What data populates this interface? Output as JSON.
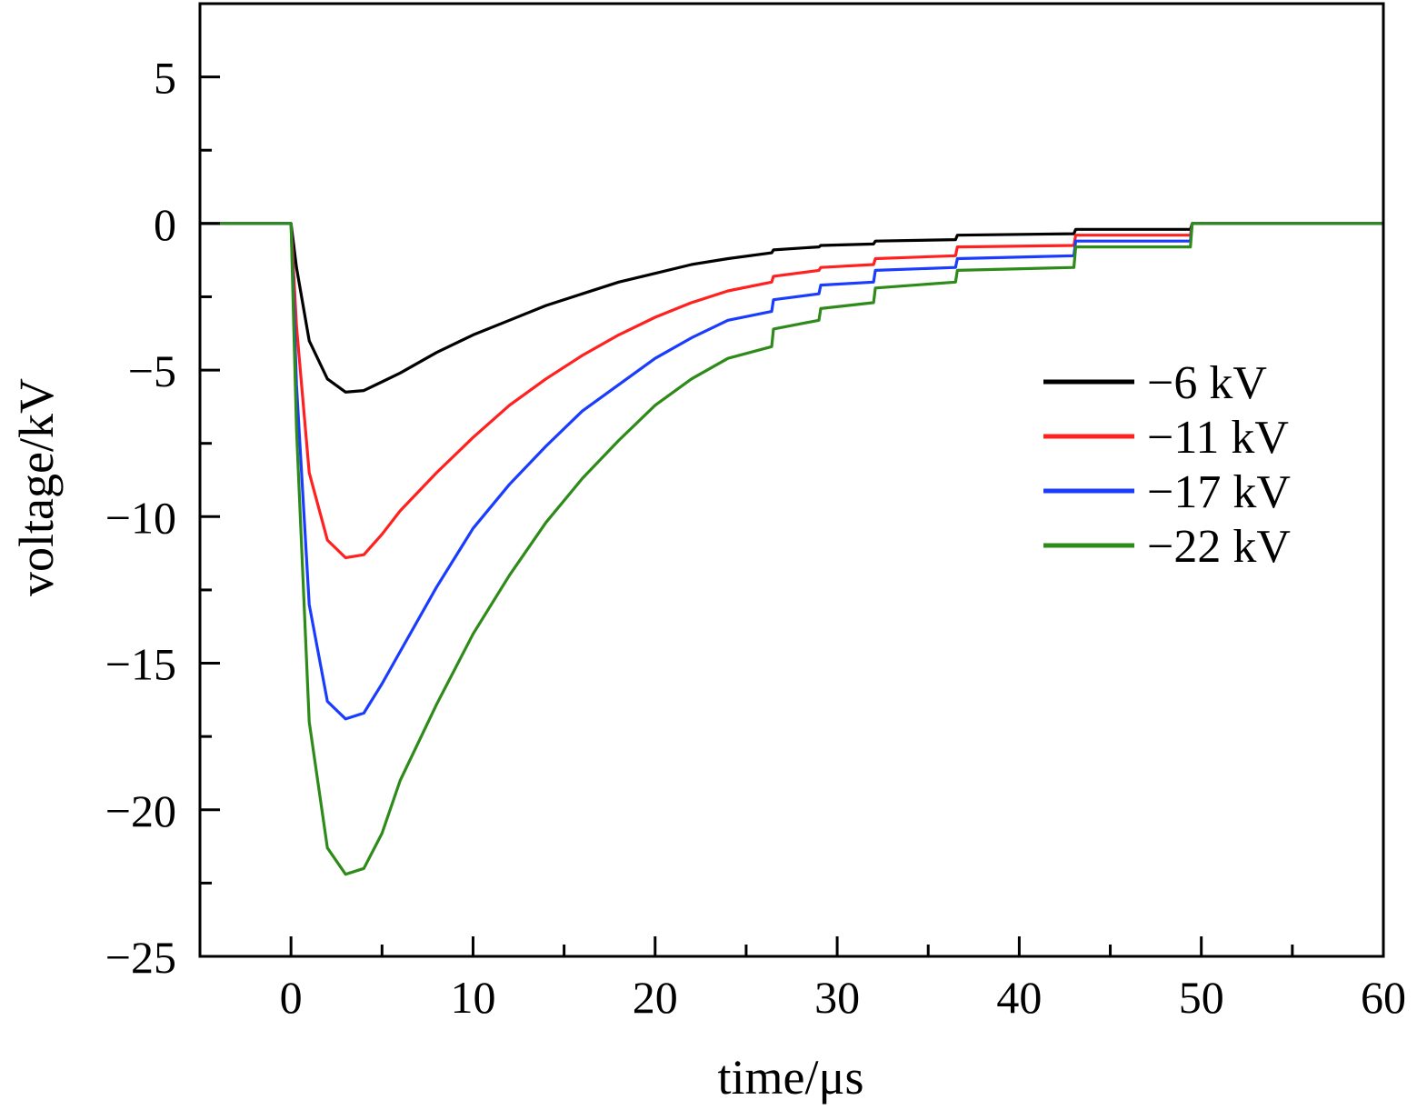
{
  "chart_data": {
    "type": "line",
    "xlabel": "time/μs",
    "ylabel": "voltage/kV",
    "xlim": [
      -5,
      60
    ],
    "ylim": [
      -25,
      7.5
    ],
    "x_ticks": [
      0,
      10,
      20,
      30,
      40,
      50,
      60
    ],
    "x_tick_labels": [
      "0",
      "10",
      "20",
      "30",
      "40",
      "50",
      "60"
    ],
    "y_ticks": [
      5,
      0,
      -5,
      -10,
      -15,
      -20,
      -25
    ],
    "y_tick_labels": [
      "5",
      "0",
      "−5",
      "−10",
      "−15",
      "−20",
      "−25"
    ],
    "grid": false,
    "legend_position": "right",
    "colors": {
      "-6 kV": "#000000",
      "-11 kV": "#ff2020",
      "-17 kV": "#1a3cff",
      "-22 kV": "#2e8b1a"
    },
    "series": [
      {
        "name": "−6 kV",
        "color": "#000000",
        "x": [
          -5,
          -0.1,
          0.0,
          0.3,
          1,
          2,
          3,
          4,
          5,
          6,
          8,
          10,
          12,
          14,
          16,
          18,
          20,
          22,
          24,
          26.4,
          26.5,
          29,
          29.1,
          32,
          32.1,
          36.5,
          36.6,
          43,
          43.1,
          49.4,
          49.5,
          60
        ],
        "y": [
          0,
          0,
          0,
          -1.5,
          -4.0,
          -5.3,
          -5.75,
          -5.7,
          -5.4,
          -5.1,
          -4.4,
          -3.8,
          -3.3,
          -2.8,
          -2.4,
          -2.0,
          -1.7,
          -1.4,
          -1.2,
          -1.0,
          -0.9,
          -0.8,
          -0.75,
          -0.7,
          -0.6,
          -0.55,
          -0.4,
          -0.35,
          -0.2,
          -0.2,
          0,
          0
        ]
      },
      {
        "name": "−11 kV",
        "color": "#ff2020",
        "x": [
          -5,
          -0.1,
          0.0,
          0.3,
          1,
          2,
          3,
          4,
          5,
          6,
          8,
          10,
          12,
          14,
          16,
          18,
          20,
          22,
          24,
          26.4,
          26.5,
          29,
          29.1,
          32,
          32.1,
          36.5,
          36.6,
          43,
          43.1,
          49.4,
          49.5,
          60
        ],
        "y": [
          0,
          0,
          0,
          -3.5,
          -8.5,
          -10.8,
          -11.4,
          -11.3,
          -10.6,
          -9.8,
          -8.5,
          -7.3,
          -6.2,
          -5.3,
          -4.5,
          -3.8,
          -3.2,
          -2.7,
          -2.3,
          -2.0,
          -1.8,
          -1.6,
          -1.5,
          -1.4,
          -1.2,
          -1.1,
          -0.8,
          -0.75,
          -0.4,
          -0.4,
          0,
          0
        ]
      },
      {
        "name": "−17 kV",
        "color": "#1a3cff",
        "x": [
          -5,
          -0.1,
          0.0,
          0.3,
          1,
          2,
          3,
          4,
          5,
          6,
          8,
          10,
          12,
          14,
          16,
          18,
          20,
          22,
          24,
          26.4,
          26.5,
          29,
          29.1,
          32,
          32.1,
          36.5,
          36.6,
          43,
          43.1,
          49.4,
          49.5,
          60
        ],
        "y": [
          0,
          0,
          0,
          -5.5,
          -13.0,
          -16.3,
          -16.9,
          -16.7,
          -15.7,
          -14.6,
          -12.4,
          -10.4,
          -8.9,
          -7.6,
          -6.4,
          -5.5,
          -4.6,
          -3.9,
          -3.3,
          -3.0,
          -2.6,
          -2.4,
          -2.1,
          -2.0,
          -1.6,
          -1.5,
          -1.2,
          -1.1,
          -0.6,
          -0.6,
          0,
          0
        ]
      },
      {
        "name": "−22 kV",
        "color": "#2e8b1a",
        "x": [
          -5,
          -0.1,
          0.0,
          0.3,
          1,
          2,
          3,
          4,
          5,
          6,
          8,
          10,
          12,
          14,
          16,
          18,
          20,
          22,
          24,
          26.4,
          26.5,
          29,
          29.1,
          32,
          32.1,
          36.5,
          36.6,
          43,
          43.1,
          49.4,
          49.5,
          60
        ],
        "y": [
          0,
          0,
          0,
          -7.0,
          -17.0,
          -21.3,
          -22.2,
          -22.0,
          -20.8,
          -19.0,
          -16.4,
          -14.0,
          -12.0,
          -10.2,
          -8.7,
          -7.4,
          -6.2,
          -5.3,
          -4.6,
          -4.2,
          -3.6,
          -3.3,
          -2.9,
          -2.7,
          -2.2,
          -2.0,
          -1.6,
          -1.5,
          -0.8,
          -0.8,
          0,
          0
        ]
      }
    ]
  }
}
